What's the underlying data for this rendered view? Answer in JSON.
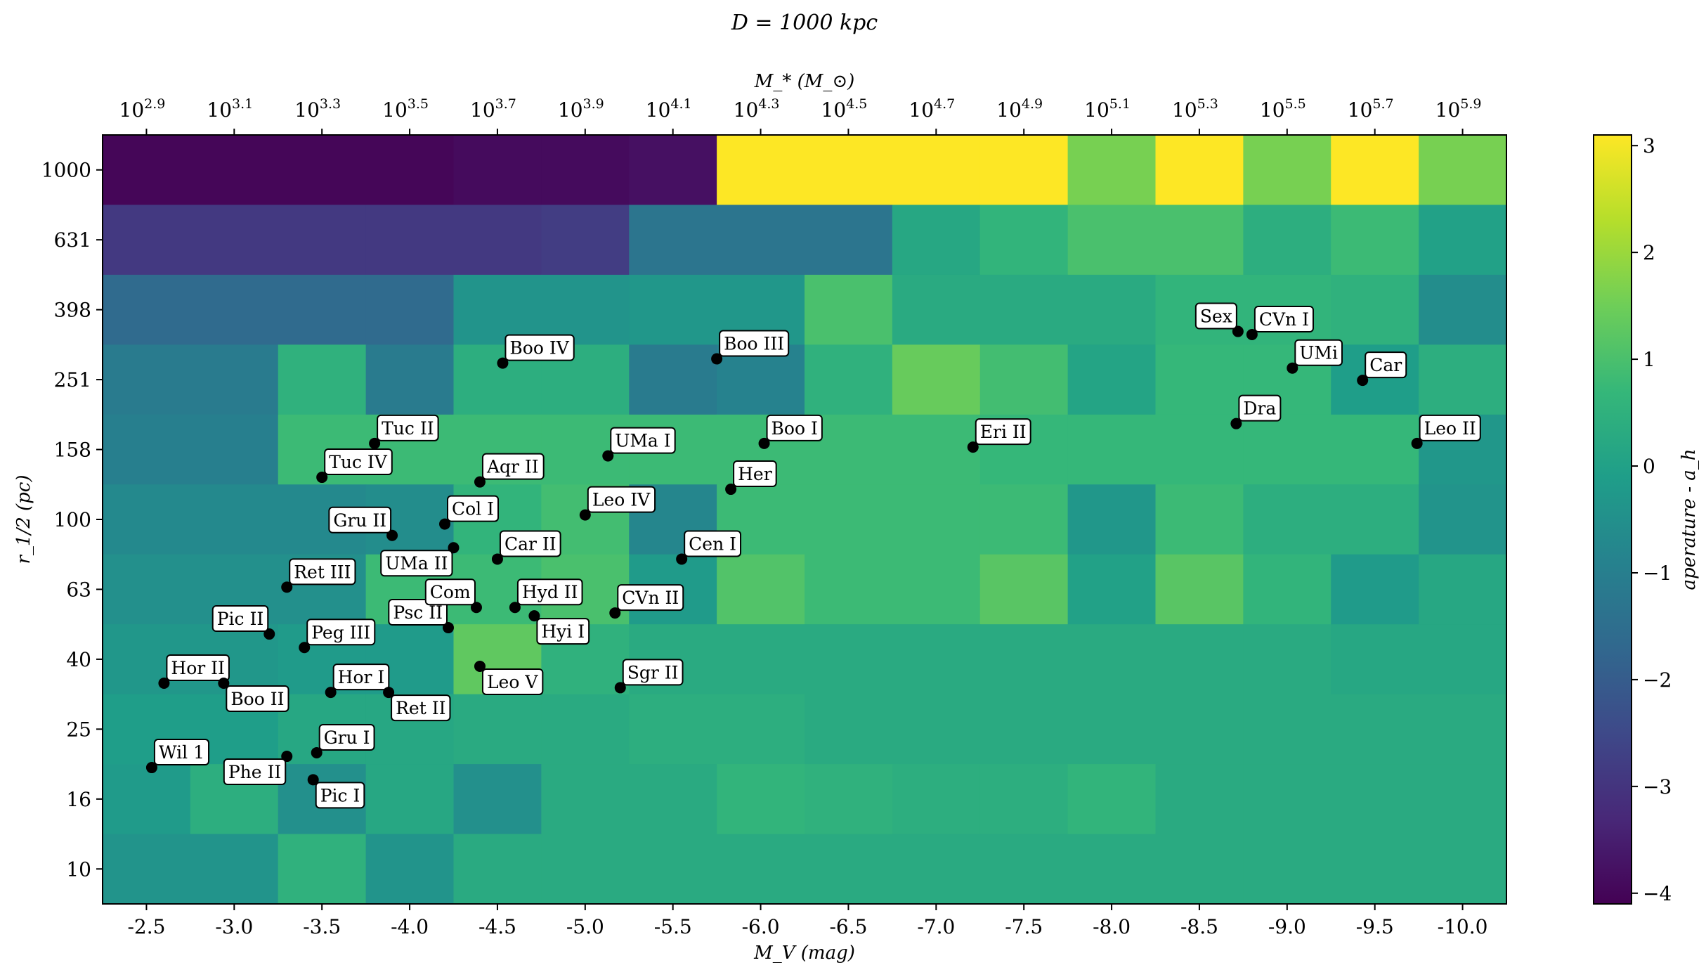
{
  "chart_data": {
    "type": "heatmap",
    "title": "D = 1000 kpc",
    "xlabel": "M_V (mag)",
    "ylabel": "r_1/2 (pc)",
    "top_xlabel": "M_* (M_⊙)",
    "colorbar_label": "aperature - a_h",
    "colorbar_range": [
      -4.1,
      3.1
    ],
    "colorbar_ticks": [
      "−4",
      "−3",
      "−2",
      "−1",
      "0",
      "1",
      "2",
      "3"
    ],
    "colorbar_tick_values": [
      -4,
      -3,
      -2,
      -1,
      0,
      1,
      2,
      3
    ],
    "x_tick_labels": [
      "-2.5",
      "-3.0",
      "-3.5",
      "-4.0",
      "-4.5",
      "-5.0",
      "-5.5",
      "-6.0",
      "-6.5",
      "-7.0",
      "-7.5",
      "-8.0",
      "-8.5",
      "-9.0",
      "-9.5",
      "-10.0"
    ],
    "top_tick_bases": [
      "10",
      "10",
      "10",
      "10",
      "10",
      "10",
      "10",
      "10",
      "10",
      "10",
      "10",
      "10",
      "10",
      "10",
      "10",
      "10"
    ],
    "top_tick_exponents": [
      "2.9",
      "3.1",
      "3.3",
      "3.5",
      "3.7",
      "3.9",
      "4.1",
      "4.3",
      "4.5",
      "4.7",
      "4.9",
      "5.1",
      "5.3",
      "5.5",
      "5.7",
      "5.9"
    ],
    "y_tick_labels": [
      "1000",
      "631",
      "398",
      "251",
      "158",
      "100",
      "63",
      "40",
      "25",
      "16",
      "10"
    ],
    "grid": [
      [
        -4.0,
        -4.0,
        -4.0,
        -4.0,
        -3.9,
        -3.9,
        -3.8,
        3.1,
        3.1,
        3.1,
        3.1,
        1.6,
        3.1,
        1.6,
        3.1,
        1.6
      ],
      [
        -2.9,
        -2.9,
        -2.9,
        -2.9,
        -2.9,
        -2.8,
        -1.3,
        -1.3,
        -1.3,
        0.2,
        0.6,
        1.0,
        1.0,
        0.4,
        0.8,
        0.0
      ],
      [
        -1.6,
        -1.6,
        -1.6,
        -1.6,
        -0.4,
        -0.4,
        -0.3,
        -0.3,
        1.0,
        0.3,
        0.3,
        0.3,
        0.6,
        0.6,
        0.5,
        -0.6
      ],
      [
        -1.1,
        -1.1,
        0.5,
        -1.1,
        0.4,
        0.4,
        -1.1,
        -0.9,
        0.5,
        1.4,
        0.9,
        0.1,
        0.7,
        0.7,
        -0.1,
        0.4
      ],
      [
        -1.0,
        -1.0,
        0.8,
        0.8,
        0.8,
        0.8,
        0.8,
        0.8,
        0.8,
        0.8,
        0.7,
        0.7,
        0.7,
        0.7,
        0.7,
        -0.3
      ],
      [
        -0.7,
        -0.7,
        -0.7,
        -0.6,
        0.6,
        0.9,
        -0.8,
        0.8,
        0.8,
        0.8,
        0.8,
        -0.3,
        0.8,
        0.4,
        0.4,
        -0.4
      ],
      [
        -0.5,
        -0.5,
        -0.5,
        0.8,
        0.8,
        1.0,
        -0.2,
        1.1,
        0.8,
        0.8,
        1.2,
        0.0,
        1.2,
        0.6,
        -0.2,
        0.2
      ],
      [
        -0.3,
        -0.3,
        -0.2,
        -0.2,
        1.3,
        0.5,
        0.3,
        0.3,
        0.3,
        0.3,
        0.3,
        0.3,
        0.3,
        0.3,
        0.2,
        0.2
      ],
      [
        -0.1,
        -0.1,
        0.2,
        0.2,
        0.3,
        0.3,
        0.4,
        0.4,
        0.3,
        0.3,
        0.3,
        0.3,
        0.3,
        0.3,
        0.3,
        0.3
      ],
      [
        -0.2,
        0.4,
        -0.5,
        0.2,
        -0.5,
        0.3,
        0.3,
        0.6,
        0.5,
        0.4,
        0.4,
        0.6,
        0.3,
        0.3,
        0.3,
        0.3
      ],
      [
        -0.4,
        -0.4,
        0.5,
        -0.4,
        0.3,
        0.3,
        0.3,
        0.3,
        0.3,
        0.3,
        0.3,
        0.3,
        0.3,
        0.3,
        0.3,
        0.3
      ]
    ],
    "galaxies": [
      {
        "name": "Wil 1",
        "mv": -2.53,
        "r": 19.5,
        "side": "right"
      },
      {
        "name": "Hor II",
        "mv": -2.6,
        "r": 34,
        "side": "right"
      },
      {
        "name": "Boo II",
        "mv": -2.94,
        "r": 34,
        "side": "right",
        "below": true
      },
      {
        "name": "Pic II",
        "mv": -3.2,
        "r": 47,
        "side": "left"
      },
      {
        "name": "Phe II",
        "mv": -3.3,
        "r": 21,
        "side": "left",
        "below": true
      },
      {
        "name": "Pic I",
        "mv": -3.45,
        "r": 18,
        "side": "right",
        "below": true
      },
      {
        "name": "Gru I",
        "mv": -3.47,
        "r": 21.5,
        "side": "right"
      },
      {
        "name": "Ret III",
        "mv": -3.3,
        "r": 64,
        "side": "right"
      },
      {
        "name": "Peg III",
        "mv": -3.4,
        "r": 43,
        "side": "right"
      },
      {
        "name": "Hor I",
        "mv": -3.55,
        "r": 32,
        "side": "right"
      },
      {
        "name": "Ret II",
        "mv": -3.88,
        "r": 32,
        "side": "right",
        "below": true
      },
      {
        "name": "Tuc IV",
        "mv": -3.5,
        "r": 132,
        "side": "right"
      },
      {
        "name": "Tuc II",
        "mv": -3.8,
        "r": 165,
        "side": "right"
      },
      {
        "name": "Gru II",
        "mv": -3.9,
        "r": 90,
        "side": "left"
      },
      {
        "name": "UMa II",
        "mv": -4.25,
        "r": 83,
        "side": "left",
        "below": true
      },
      {
        "name": "Col I",
        "mv": -4.2,
        "r": 97,
        "side": "right"
      },
      {
        "name": "Psc II",
        "mv": -4.22,
        "r": 49,
        "side": "left"
      },
      {
        "name": "Com",
        "mv": -4.38,
        "r": 56,
        "side": "left"
      },
      {
        "name": "Aqr II",
        "mv": -4.4,
        "r": 128,
        "side": "right"
      },
      {
        "name": "Leo V",
        "mv": -4.4,
        "r": 38,
        "side": "right",
        "below": true
      },
      {
        "name": "Car II",
        "mv": -4.5,
        "r": 77,
        "side": "right"
      },
      {
        "name": "Hyd II",
        "mv": -4.6,
        "r": 56,
        "side": "right"
      },
      {
        "name": "Hyi I",
        "mv": -4.71,
        "r": 53,
        "side": "right",
        "below": true
      },
      {
        "name": "Boo IV",
        "mv": -4.53,
        "r": 280,
        "side": "right"
      },
      {
        "name": "Leo IV",
        "mv": -5.0,
        "r": 103,
        "side": "right"
      },
      {
        "name": "UMa I",
        "mv": -5.13,
        "r": 152,
        "side": "right"
      },
      {
        "name": "CVn II",
        "mv": -5.17,
        "r": 54,
        "side": "right"
      },
      {
        "name": "Sgr II",
        "mv": -5.2,
        "r": 33,
        "side": "right"
      },
      {
        "name": "Cen I",
        "mv": -5.55,
        "r": 77,
        "side": "right"
      },
      {
        "name": "Boo III",
        "mv": -5.75,
        "r": 288,
        "side": "right"
      },
      {
        "name": "Her",
        "mv": -5.83,
        "r": 122,
        "side": "right"
      },
      {
        "name": "Boo I",
        "mv": -6.02,
        "r": 165,
        "side": "right"
      },
      {
        "name": "Eri II",
        "mv": -7.21,
        "r": 161,
        "side": "right"
      },
      {
        "name": "Sex",
        "mv": -8.72,
        "r": 345,
        "side": "left"
      },
      {
        "name": "CVn I",
        "mv": -8.8,
        "r": 338,
        "side": "right"
      },
      {
        "name": "UMi",
        "mv": -9.03,
        "r": 271,
        "side": "right"
      },
      {
        "name": "Dra",
        "mv": -8.71,
        "r": 188,
        "side": "right"
      },
      {
        "name": "Car",
        "mv": -9.43,
        "r": 250,
        "side": "right"
      },
      {
        "name": "Leo II",
        "mv": -9.74,
        "r": 165,
        "side": "right"
      }
    ]
  }
}
